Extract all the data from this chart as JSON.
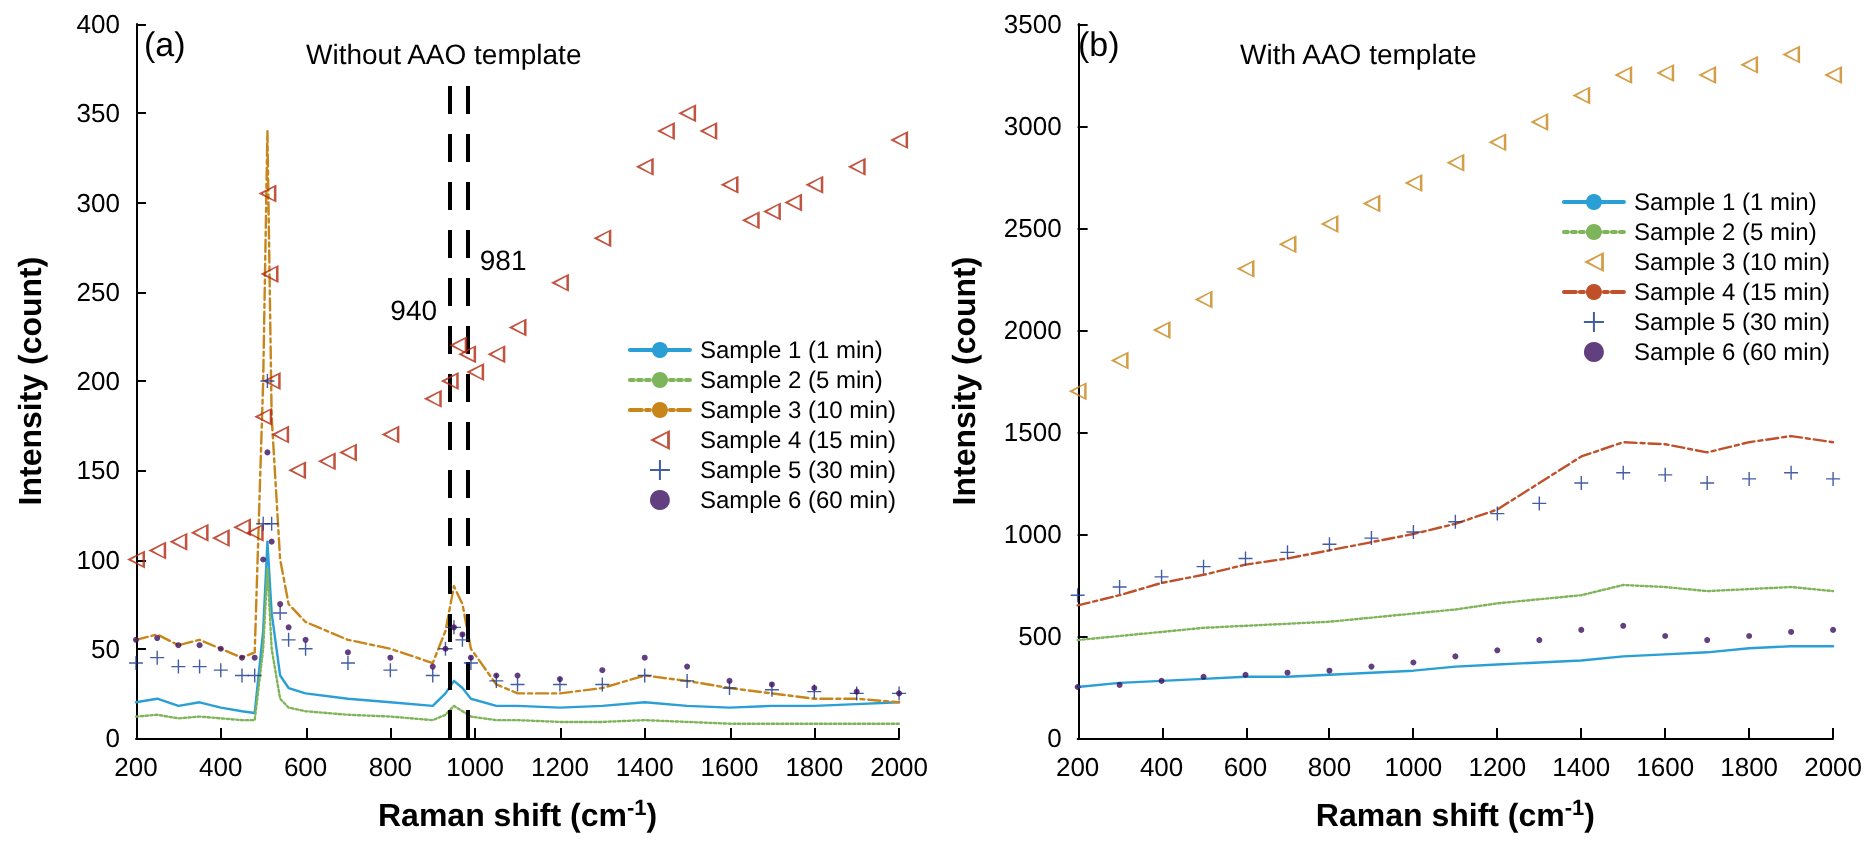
{
  "chart_data": [
    {
      "type": "line",
      "title": "Without AAO template",
      "annotations": [
        "(a)"
      ],
      "xlabel": "Raman shift (cm$^{-1}$)",
      "ylabel": "Intensity (count)",
      "xlim": [
        200,
        2000
      ],
      "xticks": [
        200,
        400,
        600,
        800,
        1000,
        1200,
        1400,
        1600,
        1800,
        2000
      ],
      "ylim": [
        0,
        400
      ],
      "yticks": [
        0,
        50,
        100,
        150,
        200,
        250,
        300,
        350,
        400
      ],
      "grid": false,
      "legend": "right",
      "ref_lines": [
        {
          "axis": "x",
          "value": 940,
          "label": "940",
          "color": "#000000",
          "line_style": "dashed"
        },
        {
          "axis": "x",
          "value": 981,
          "label": "981",
          "color": "#000000",
          "line_style": "dashed"
        }
      ],
      "series": [
        {
          "name": "Sample 1 (1 min)",
          "type": "line",
          "color": "#2a9fd6",
          "line_style": "solid",
          "marker": "none",
          "x": [
            200,
            250,
            300,
            350,
            400,
            450,
            480,
            500,
            510,
            520,
            540,
            560,
            600,
            700,
            800,
            900,
            930,
            950,
            970,
            990,
            1050,
            1100,
            1200,
            1300,
            1400,
            1500,
            1600,
            1700,
            1800,
            1900,
            2000
          ],
          "values": [
            20,
            22,
            18,
            20,
            17,
            15,
            14,
            60,
            110,
            70,
            35,
            28,
            25,
            22,
            20,
            18,
            25,
            32,
            28,
            22,
            18,
            18,
            17,
            18,
            20,
            18,
            17,
            18,
            18,
            19,
            20
          ]
        },
        {
          "name": "Sample 2 (5 min)",
          "type": "line",
          "color": "#7fb55a",
          "line_style": "dotted",
          "marker": "none",
          "x": [
            200,
            250,
            300,
            350,
            400,
            450,
            480,
            500,
            510,
            520,
            540,
            560,
            600,
            700,
            800,
            900,
            930,
            950,
            970,
            990,
            1050,
            1100,
            1200,
            1300,
            1400,
            1500,
            1600,
            1700,
            1800,
            1900,
            2000
          ],
          "values": [
            12,
            13,
            11,
            12,
            11,
            10,
            10,
            50,
            95,
            50,
            22,
            17,
            15,
            13,
            12,
            10,
            13,
            18,
            15,
            12,
            10,
            10,
            9,
            9,
            10,
            9,
            8,
            8,
            8,
            8,
            8
          ]
        },
        {
          "name": "Sample 3 (10 min)",
          "type": "line",
          "color": "#c8861a",
          "line_style": "dashed",
          "marker": "none",
          "x": [
            200,
            250,
            300,
            350,
            400,
            450,
            480,
            500,
            510,
            520,
            540,
            560,
            600,
            700,
            800,
            900,
            930,
            950,
            970,
            990,
            1050,
            1100,
            1200,
            1300,
            1400,
            1500,
            1600,
            1700,
            1800,
            1900,
            2000
          ],
          "values": [
            55,
            58,
            52,
            55,
            50,
            45,
            48,
            200,
            340,
            180,
            100,
            75,
            65,
            55,
            50,
            42,
            60,
            85,
            75,
            50,
            30,
            25,
            25,
            28,
            35,
            32,
            28,
            25,
            22,
            22,
            20
          ]
        },
        {
          "name": "Sample 4 (15 min)",
          "type": "scatter",
          "color": "#b3280f",
          "marker": "triangle",
          "x": [
            200,
            250,
            300,
            350,
            400,
            450,
            480,
            500,
            510,
            515,
            520,
            540,
            580,
            650,
            700,
            800,
            900,
            940,
            960,
            981,
            1000,
            1050,
            1100,
            1200,
            1300,
            1400,
            1450,
            1500,
            1550,
            1600,
            1650,
            1700,
            1750,
            1800,
            1900,
            2000
          ],
          "values": [
            100,
            105,
            110,
            115,
            112,
            118,
            115,
            180,
            305,
            260,
            200,
            170,
            150,
            155,
            160,
            170,
            190,
            200,
            220,
            215,
            205,
            215,
            230,
            255,
            280,
            320,
            340,
            350,
            340,
            310,
            290,
            295,
            300,
            310,
            320,
            335
          ]
        },
        {
          "name": "Sample 5 (30 min)",
          "type": "scatter",
          "color": "#14358c",
          "marker": "cross",
          "x": [
            200,
            250,
            300,
            350,
            400,
            450,
            480,
            500,
            510,
            520,
            540,
            560,
            600,
            700,
            800,
            900,
            930,
            950,
            970,
            990,
            1050,
            1100,
            1200,
            1300,
            1400,
            1500,
            1600,
            1700,
            1800,
            1900,
            2000
          ],
          "values": [
            42,
            45,
            40,
            40,
            38,
            35,
            35,
            120,
            200,
            120,
            70,
            55,
            50,
            42,
            38,
            35,
            50,
            62,
            55,
            42,
            32,
            30,
            30,
            30,
            35,
            32,
            28,
            27,
            26,
            25,
            25
          ]
        },
        {
          "name": "Sample 6 (60 min)",
          "type": "scatter",
          "color": "#3b0f5e",
          "marker": "circle",
          "x": [
            200,
            250,
            300,
            350,
            400,
            450,
            480,
            500,
            510,
            520,
            540,
            560,
            600,
            700,
            800,
            900,
            930,
            950,
            970,
            990,
            1050,
            1100,
            1200,
            1300,
            1400,
            1500,
            1600,
            1700,
            1800,
            1900,
            2000
          ],
          "values": [
            55,
            56,
            52,
            52,
            50,
            45,
            45,
            100,
            160,
            110,
            75,
            62,
            55,
            48,
            45,
            40,
            50,
            62,
            58,
            45,
            35,
            35,
            33,
            38,
            45,
            40,
            32,
            30,
            28,
            26,
            25
          ]
        }
      ]
    },
    {
      "type": "line",
      "title": "With AAO template",
      "annotations": [
        "(b)"
      ],
      "xlabel": "Raman shift (cm$^{-1}$)",
      "ylabel": "Intensity (count)",
      "xlim": [
        200,
        2000
      ],
      "xticks": [
        200,
        400,
        600,
        800,
        1000,
        1200,
        1400,
        1600,
        1800,
        2000
      ],
      "ylim": [
        0,
        3500
      ],
      "yticks": [
        0,
        500,
        1000,
        1500,
        2000,
        2500,
        3000,
        3500
      ],
      "grid": false,
      "legend": "top right",
      "series": [
        {
          "name": "Sample 1 (1 min)",
          "type": "line",
          "color": "#2a9fd6",
          "line_style": "solid",
          "marker": "none",
          "x": [
            200,
            300,
            400,
            500,
            600,
            700,
            800,
            900,
            1000,
            1100,
            1200,
            1300,
            1400,
            1500,
            1600,
            1700,
            1800,
            1900,
            2000
          ],
          "values": [
            250,
            270,
            280,
            290,
            300,
            300,
            310,
            320,
            330,
            350,
            360,
            370,
            380,
            400,
            410,
            420,
            440,
            450,
            450
          ]
        },
        {
          "name": "Sample 2 (5 min)",
          "type": "line",
          "color": "#7fb55a",
          "line_style": "dotted",
          "marker": "none",
          "x": [
            200,
            300,
            400,
            500,
            600,
            700,
            800,
            900,
            1000,
            1100,
            1200,
            1300,
            1400,
            1500,
            1600,
            1700,
            1800,
            1900,
            2000
          ],
          "values": [
            480,
            500,
            520,
            540,
            550,
            560,
            570,
            590,
            610,
            630,
            660,
            680,
            700,
            750,
            740,
            720,
            730,
            740,
            720
          ]
        },
        {
          "name": "Sample 3 (10 min)",
          "type": "scatter",
          "color": "#c8861a",
          "marker": "triangle",
          "x": [
            200,
            300,
            400,
            500,
            600,
            700,
            800,
            900,
            1000,
            1100,
            1200,
            1300,
            1400,
            1500,
            1600,
            1700,
            1800,
            1900,
            2000
          ],
          "values": [
            1700,
            1850,
            2000,
            2150,
            2300,
            2420,
            2520,
            2620,
            2720,
            2820,
            2920,
            3020,
            3150,
            3250,
            3260,
            3250,
            3300,
            3350,
            3250
          ]
        },
        {
          "name": "Sample 4 (15 min)",
          "type": "line",
          "color": "#c0502a",
          "line_style": "dashed",
          "marker": "none",
          "x": [
            200,
            300,
            400,
            500,
            600,
            700,
            800,
            900,
            1000,
            1100,
            1200,
            1300,
            1400,
            1500,
            1600,
            1700,
            1800,
            1900,
            2000
          ],
          "values": [
            650,
            700,
            760,
            800,
            850,
            880,
            920,
            960,
            1000,
            1050,
            1120,
            1250,
            1380,
            1450,
            1440,
            1400,
            1450,
            1480,
            1450
          ]
        },
        {
          "name": "Sample 5 (30 min)",
          "type": "scatter",
          "color": "#14358c",
          "marker": "cross",
          "x": [
            200,
            300,
            400,
            500,
            600,
            700,
            800,
            900,
            1000,
            1100,
            1200,
            1300,
            1400,
            1500,
            1600,
            1700,
            1800,
            1900,
            2000
          ],
          "values": [
            700,
            740,
            790,
            840,
            880,
            910,
            950,
            980,
            1010,
            1060,
            1100,
            1150,
            1250,
            1300,
            1290,
            1250,
            1270,
            1300,
            1270
          ]
        },
        {
          "name": "Sample 6 (60 min)",
          "type": "scatter",
          "color": "#3b0f5e",
          "marker": "circle",
          "x": [
            200,
            300,
            400,
            500,
            600,
            700,
            800,
            900,
            1000,
            1100,
            1200,
            1300,
            1400,
            1500,
            1600,
            1700,
            1800,
            1900,
            2000
          ],
          "values": [
            250,
            260,
            280,
            300,
            310,
            320,
            330,
            350,
            370,
            400,
            430,
            480,
            530,
            550,
            500,
            480,
            500,
            520,
            530
          ]
        }
      ]
    }
  ]
}
